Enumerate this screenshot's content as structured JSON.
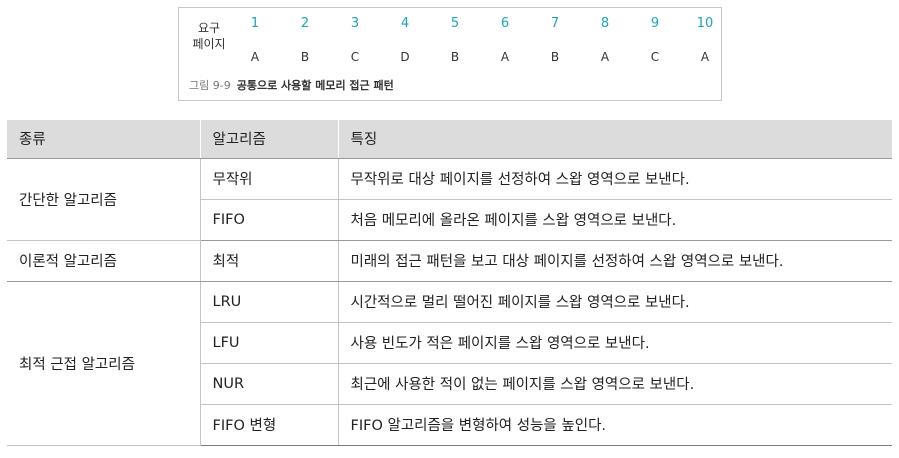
{
  "figure": {
    "row_label_top": "요구",
    "row_label_bottom": "페이지",
    "numbers": [
      "1",
      "2",
      "3",
      "4",
      "5",
      "6",
      "7",
      "8",
      "9",
      "10"
    ],
    "pages": [
      "A",
      "B",
      "C",
      "D",
      "B",
      "A",
      "B",
      "A",
      "C",
      "A"
    ],
    "caption_number": "그림 9-9",
    "caption_title": "공통으로 사용할 메모리 접근 패턴",
    "number_color": "#1aa6b7"
  },
  "table": {
    "headers": {
      "category": "종류",
      "algorithm": "알고리즘",
      "feature": "특징"
    },
    "groups": [
      {
        "category": "간단한 알고리즘",
        "rows": [
          {
            "name": "무작위",
            "feature": "무작위로 대상 페이지를 선정하여 스왑 영역으로 보낸다."
          },
          {
            "name": "FIFO",
            "feature": "처음 메모리에 올라온 페이지를 스왑 영역으로 보낸다."
          }
        ]
      },
      {
        "category": "이론적 알고리즘",
        "rows": [
          {
            "name": "최적",
            "feature": "미래의 접근 패턴을 보고 대상 페이지를 선정하여 스왑 영역으로 보낸다."
          }
        ]
      },
      {
        "category": "최적 근접 알고리즘",
        "rows": [
          {
            "name": "LRU",
            "feature": "시간적으로 멀리 떨어진 페이지를 스왑 영역으로 보낸다."
          },
          {
            "name": "LFU",
            "feature": "사용 빈도가 적은 페이지를 스왑 영역으로 보낸다."
          },
          {
            "name": "NUR",
            "feature": "최근에 사용한 적이 없는 페이지를 스왑 영역으로 보낸다."
          },
          {
            "name": "FIFO 변형",
            "feature": "FIFO 알고리즘을 변형하여 성능을 높인다."
          }
        ]
      }
    ],
    "header_bg": "#dcdcdc"
  }
}
